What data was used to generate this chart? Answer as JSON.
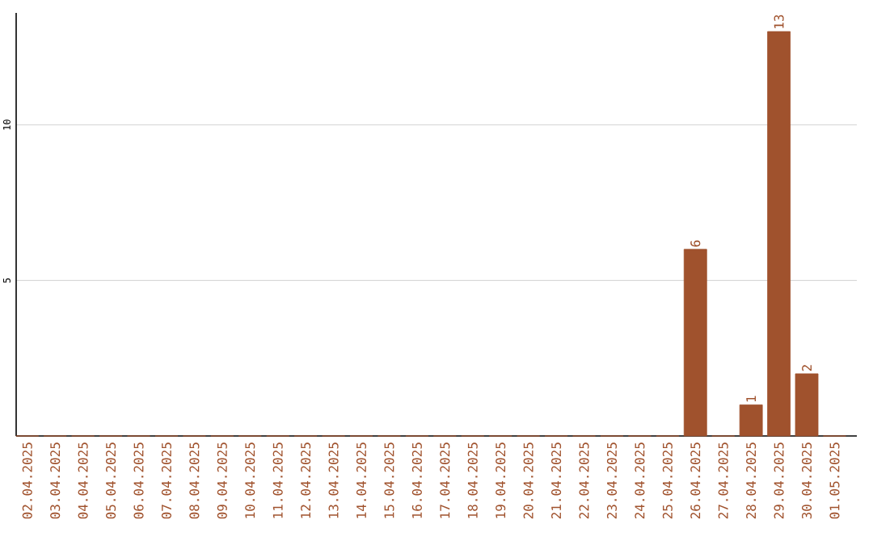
{
  "chart_data": {
    "type": "bar",
    "categories": [
      "02.04.2025",
      "03.04.2025",
      "04.04.2025",
      "05.04.2025",
      "06.04.2025",
      "07.04.2025",
      "08.04.2025",
      "09.04.2025",
      "10.04.2025",
      "11.04.2025",
      "12.04.2025",
      "13.04.2025",
      "14.04.2025",
      "15.04.2025",
      "16.04.2025",
      "17.04.2025",
      "18.04.2025",
      "19.04.2025",
      "20.04.2025",
      "21.04.2025",
      "22.04.2025",
      "23.04.2025",
      "24.04.2025",
      "25.04.2025",
      "26.04.2025",
      "27.04.2025",
      "28.04.2025",
      "29.04.2025",
      "30.04.2025",
      "01.05.2025"
    ],
    "values": [
      0,
      0,
      0,
      0,
      0,
      0,
      0,
      0,
      0,
      0,
      0,
      0,
      0,
      0,
      0,
      0,
      0,
      0,
      0,
      0,
      0,
      0,
      0,
      0,
      6,
      0,
      1,
      13,
      2,
      0
    ],
    "value_labels": [
      null,
      null,
      null,
      null,
      null,
      null,
      null,
      null,
      null,
      null,
      null,
      null,
      null,
      null,
      null,
      null,
      null,
      null,
      null,
      null,
      null,
      null,
      null,
      null,
      "6",
      null,
      "1",
      "13",
      "2",
      null
    ],
    "color": "#a0522d",
    "ylim": [
      0,
      13.6
    ],
    "yticks": [
      5,
      10
    ],
    "grid": "y"
  }
}
